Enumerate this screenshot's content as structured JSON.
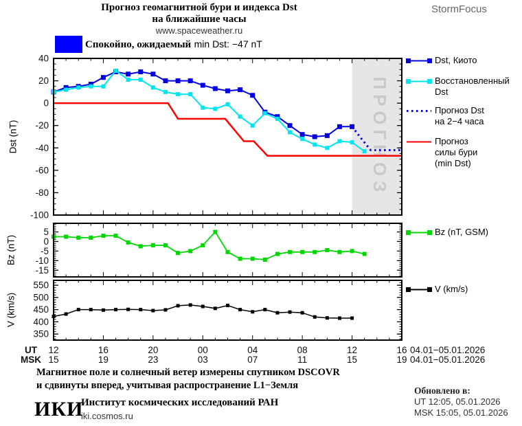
{
  "header": {
    "title_line1": "Прогноз геомагнитной бури и индекса Dst",
    "title_line2": "на ближайшие часы",
    "url": "www.spaceweather.ru",
    "brand": "StormFocus"
  },
  "status": {
    "label_bold": "Спокойно, ожидаемый",
    "label_rest": "min Dst: −47 nT",
    "swatch_color": "#0000ff"
  },
  "chart_data": [
    {
      "id": "dst",
      "type": "line",
      "ylabel": "Dst (nT)",
      "ylim": [
        -100,
        40
      ],
      "yticks": [
        40,
        20,
        0,
        -20,
        -40,
        -60,
        -80,
        -100
      ],
      "y_minor_step": 5,
      "x_hours_span": 28,
      "series": [
        {
          "name": "Dst, Киото",
          "color": "#0000e0",
          "width": 2,
          "marker_size": 7,
          "values": [
            10,
            14,
            15,
            17,
            23,
            28,
            26,
            28,
            26,
            20,
            20,
            20,
            16,
            13,
            11,
            12,
            7,
            -8,
            -12,
            -20,
            -28,
            -30,
            -29,
            -21,
            -21
          ]
        },
        {
          "name": "Восстановленный Dst",
          "color": "#00e5ee",
          "width": 2,
          "marker_size": 6,
          "values": [
            10,
            12,
            14,
            15,
            15,
            29,
            21,
            21,
            14,
            10,
            8,
            8,
            -4,
            -5,
            -1,
            -12,
            -20,
            -9,
            -14,
            -26,
            -32,
            -37,
            -40,
            -34,
            -35,
            -43
          ]
        },
        {
          "name": "Прогноз Dst на 2−4 часа",
          "color": "#0000e0",
          "width": 3,
          "style": "dotted",
          "x": [
            24,
            24.7,
            25.5,
            28
          ],
          "values": [
            -21,
            -31,
            -42,
            -42
          ]
        },
        {
          "name": "Прогноз силы бури (min Dst)",
          "color": "#ff0000",
          "width": 2.5,
          "x": [
            0,
            9.2,
            10,
            13.8,
            15.3,
            16.1,
            17.2,
            28
          ],
          "values": [
            0,
            0,
            -14,
            -14,
            -34,
            -34,
            -47,
            -47
          ]
        }
      ],
      "forecast_band": {
        "x_start": 24,
        "x_end": 28,
        "label": "ПРОГНОЗ",
        "fill": "#e6e6e6",
        "label_color": "#c9c9c9"
      }
    },
    {
      "id": "bz",
      "type": "line",
      "ylabel": "Bz (nT)",
      "ylim": [
        -18.5,
        9.5
      ],
      "yticks": [
        5,
        0,
        -5,
        -10,
        -15
      ],
      "y_minor_step": 1,
      "x_hours_span": 28,
      "series": [
        {
          "name": "Bz (nT, GSM)",
          "color": "#00d800",
          "width": 1.8,
          "marker_size": 6,
          "values": [
            2.5,
            2.5,
            2,
            2,
            3,
            3,
            -0.5,
            -2.5,
            -2,
            -2,
            -6,
            -5,
            -2,
            5,
            -5.5,
            -9,
            -9,
            -9.5,
            -6.5,
            -5.5,
            -5.5,
            -5.5,
            -4.5,
            -5.5,
            -5,
            -6.5
          ]
        }
      ]
    },
    {
      "id": "v",
      "type": "line",
      "ylabel": "V (km/s)",
      "ylim": [
        325,
        570
      ],
      "yticks": [
        550,
        500,
        450,
        400,
        350
      ],
      "y_minor_step": 10,
      "x_hours_span": 28,
      "series": [
        {
          "name": "V (km/s)",
          "color": "#000000",
          "width": 1.5,
          "marker_size": 5,
          "values": [
            422,
            432,
            450,
            450,
            448,
            450,
            451,
            450,
            446,
            449,
            466,
            469,
            463,
            455,
            467,
            450,
            441,
            450,
            437,
            440,
            437,
            420,
            416,
            415,
            415
          ]
        }
      ]
    }
  ],
  "x_axis": {
    "label_ut": "UT",
    "label_msk": "MSK",
    "span_hours": 28,
    "major_step": 4,
    "ut_ticks": [
      "12",
      "16",
      "20",
      "00",
      "04",
      "08",
      "12",
      "16"
    ],
    "msk_ticks": [
      "15",
      "19",
      "23",
      "03",
      "07",
      "11",
      "15",
      "19"
    ],
    "ut_date": "04.01−05.01.2026",
    "msk_date": "04.01−05.01.2026"
  },
  "legend": {
    "main": [
      {
        "lines": [
          "Dst, Киото"
        ],
        "color": "#0000e0",
        "marker": true
      },
      {
        "lines": [
          "Восстановленный",
          "Dst"
        ],
        "color": "#00e5ee",
        "marker": true
      },
      {
        "lines": [
          "Прогноз Dst",
          "на 2−4 часа"
        ],
        "color": "#0000e0",
        "style": "dotted"
      },
      {
        "lines": [
          "Прогноз",
          "силы бури",
          "(min Dst)"
        ],
        "color": "#ff0000"
      }
    ],
    "bz": {
      "lines": [
        "Bz (nT, GSM)"
      ],
      "color": "#00d800",
      "marker": true
    },
    "v": {
      "lines": [
        "V (km/s)"
      ],
      "color": "#000000",
      "marker": true
    }
  },
  "footer": {
    "note_line1": "Магнитное поле и солнечный ветер измерены спутником DSCOVR",
    "note_line2": "и сдвинуты вперед, учитывая распространение L1−Земля",
    "logo": "ИКИ",
    "institute": "Институт космических исследований РАН",
    "site": "iki.cosmos.ru",
    "updated_title": "Обновлено в:",
    "updated_ut": "UT   12:05, 05.01.2026",
    "updated_msk": "MSK 15:05, 05.01.2026"
  }
}
